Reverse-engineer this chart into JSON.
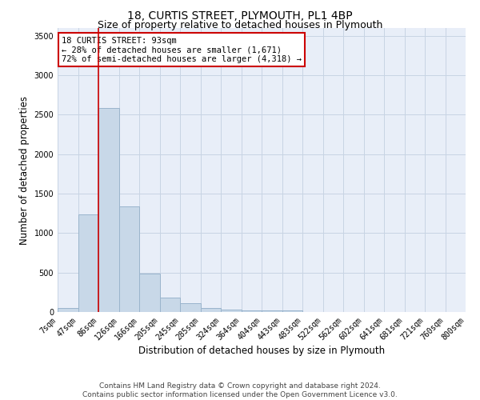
{
  "title": "18, CURTIS STREET, PLYMOUTH, PL1 4BP",
  "subtitle": "Size of property relative to detached houses in Plymouth",
  "xlabel": "Distribution of detached houses by size in Plymouth",
  "ylabel": "Number of detached properties",
  "bar_color": "#c8d8e8",
  "bar_edgecolor": "#9ab4cc",
  "bar_linewidth": 0.7,
  "grid_color": "#c8d4e4",
  "background_color": "#e8eef8",
  "bins": [
    "7sqm",
    "47sqm",
    "86sqm",
    "126sqm",
    "166sqm",
    "205sqm",
    "245sqm",
    "285sqm",
    "324sqm",
    "364sqm",
    "404sqm",
    "443sqm",
    "483sqm",
    "522sqm",
    "562sqm",
    "602sqm",
    "641sqm",
    "681sqm",
    "721sqm",
    "760sqm",
    "800sqm"
  ],
  "values": [
    50,
    1240,
    2590,
    1340,
    490,
    185,
    115,
    55,
    30,
    20,
    20,
    25,
    0,
    0,
    0,
    0,
    0,
    0,
    0,
    0
  ],
  "ylim": [
    0,
    3600
  ],
  "yticks": [
    0,
    500,
    1000,
    1500,
    2000,
    2500,
    3000,
    3500
  ],
  "property_line_color": "#cc0000",
  "annotation_text": "18 CURTIS STREET: 93sqm\n← 28% of detached houses are smaller (1,671)\n72% of semi-detached houses are larger (4,318) →",
  "annotation_box_color": "#ffffff",
  "annotation_box_edgecolor": "#cc0000",
  "footer_line1": "Contains HM Land Registry data © Crown copyright and database right 2024.",
  "footer_line2": "Contains public sector information licensed under the Open Government Licence v3.0.",
  "title_fontsize": 10,
  "subtitle_fontsize": 9,
  "xlabel_fontsize": 8.5,
  "ylabel_fontsize": 8.5,
  "tick_fontsize": 7,
  "footer_fontsize": 6.5,
  "annotation_fontsize": 7.5
}
